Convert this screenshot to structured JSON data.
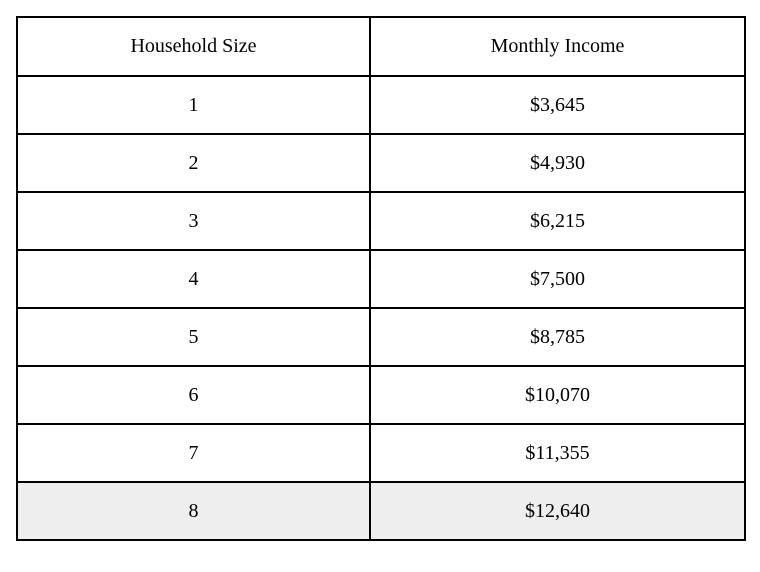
{
  "page": {
    "background": "#ffffff"
  },
  "table": {
    "border_color": "#000000",
    "highlight_row_bg": "#eeeeee",
    "headers": {
      "household_size": "Household Size",
      "monthly_income": "Monthly Income"
    },
    "rows": [
      {
        "household_size": "1",
        "monthly_income": "$3,645",
        "highlighted": false
      },
      {
        "household_size": "2",
        "monthly_income": "$4,930",
        "highlighted": false
      },
      {
        "household_size": "3",
        "monthly_income": "$6,215",
        "highlighted": false
      },
      {
        "household_size": "4",
        "monthly_income": "$7,500",
        "highlighted": false
      },
      {
        "household_size": "5",
        "monthly_income": "$8,785",
        "highlighted": false
      },
      {
        "household_size": "6",
        "monthly_income": "$10,070",
        "highlighted": false
      },
      {
        "household_size": "7",
        "monthly_income": "$11,355",
        "highlighted": false
      },
      {
        "household_size": "8",
        "monthly_income": "$12,640",
        "highlighted": true
      }
    ]
  }
}
